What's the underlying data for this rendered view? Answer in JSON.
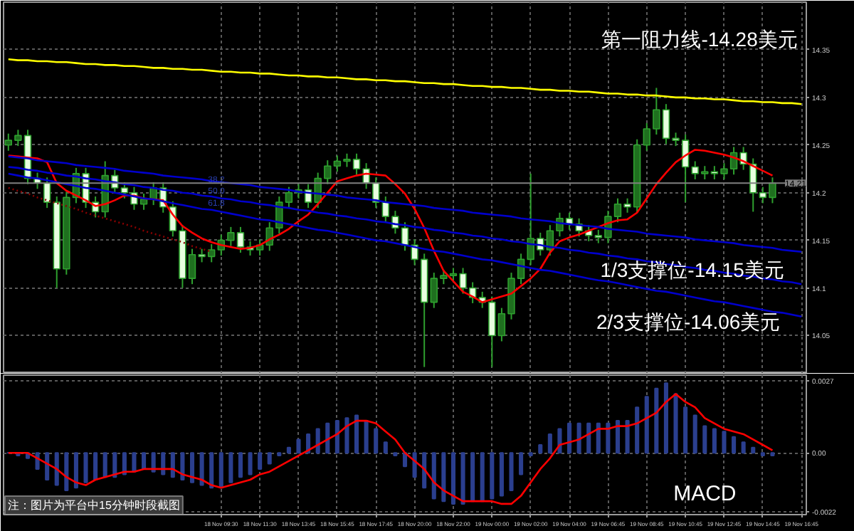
{
  "chart_data": [
    {
      "type": "candlestick",
      "categories": [
        null,
        null,
        null,
        null,
        null,
        null,
        null,
        null,
        null,
        null,
        null,
        null,
        null,
        null,
        null,
        null,
        null,
        null,
        null,
        null,
        null,
        null,
        null,
        null,
        null,
        null,
        null,
        null,
        null,
        null,
        null,
        null,
        null,
        null,
        null,
        null,
        null,
        null,
        null,
        null,
        null,
        null,
        null,
        null,
        null,
        null,
        null,
        null,
        null,
        null,
        null,
        null,
        null,
        null,
        null,
        null,
        null,
        null,
        null,
        null,
        null,
        null,
        null,
        null,
        null,
        null,
        null,
        null,
        null,
        null,
        null,
        null,
        null,
        null,
        null,
        null,
        null,
        null,
        null,
        null,
        null,
        null,
        null
      ],
      "ohlc": [
        [
          14.25,
          14.262,
          14.244,
          14.255
        ],
        [
          14.255,
          14.266,
          14.249,
          14.26
        ],
        [
          14.26,
          14.266,
          14.209,
          14.215
        ],
        [
          14.215,
          14.221,
          14.204,
          14.21
        ],
        [
          14.21,
          14.216,
          14.184,
          14.19
        ],
        [
          14.19,
          14.196,
          14.1,
          14.12
        ],
        [
          14.12,
          14.201,
          14.114,
          14.195
        ],
        [
          14.195,
          14.226,
          14.189,
          14.22
        ],
        [
          14.22,
          14.226,
          14.184,
          14.19
        ],
        [
          14.19,
          14.196,
          14.174,
          14.18
        ],
        [
          14.18,
          14.233,
          14.174,
          14.218
        ],
        [
          14.218,
          14.224,
          14.199,
          14.205
        ],
        [
          14.205,
          14.211,
          14.194,
          14.2
        ],
        [
          14.2,
          14.206,
          14.182,
          14.188
        ],
        [
          14.188,
          14.199,
          14.182,
          14.193
        ],
        [
          14.193,
          14.211,
          14.187,
          14.205
        ],
        [
          14.205,
          14.211,
          14.179,
          14.185
        ],
        [
          14.185,
          14.191,
          14.154,
          14.16
        ],
        [
          14.16,
          14.166,
          14.1,
          14.11
        ],
        [
          14.11,
          14.141,
          14.104,
          14.135
        ],
        [
          14.135,
          14.141,
          14.127,
          14.133
        ],
        [
          14.133,
          14.146,
          14.127,
          14.14
        ],
        [
          14.14,
          14.156,
          14.134,
          14.15
        ],
        [
          14.15,
          14.164,
          14.144,
          14.158
        ],
        [
          14.158,
          14.164,
          14.137,
          14.143
        ],
        [
          14.143,
          14.149,
          14.134,
          14.14
        ],
        [
          14.14,
          14.151,
          14.134,
          14.145
        ],
        [
          14.145,
          14.169,
          14.139,
          14.163
        ],
        [
          14.163,
          14.196,
          14.157,
          14.19
        ],
        [
          14.19,
          14.206,
          14.184,
          14.2
        ],
        [
          14.2,
          14.209,
          14.194,
          14.203
        ],
        [
          14.203,
          14.209,
          14.184,
          14.19
        ],
        [
          14.19,
          14.221,
          14.184,
          14.215
        ],
        [
          14.215,
          14.234,
          14.209,
          14.228
        ],
        [
          14.228,
          14.239,
          14.222,
          14.233
        ],
        [
          14.233,
          14.241,
          14.227,
          14.235
        ],
        [
          14.235,
          14.241,
          14.219,
          14.225
        ],
        [
          14.225,
          14.231,
          14.204,
          14.21
        ],
        [
          14.21,
          14.216,
          14.184,
          14.19
        ],
        [
          14.19,
          14.196,
          14.169,
          14.175
        ],
        [
          14.175,
          14.181,
          14.157,
          14.163
        ],
        [
          14.163,
          14.169,
          14.139,
          14.145
        ],
        [
          14.145,
          14.151,
          14.124,
          14.13
        ],
        [
          14.13,
          14.136,
          14.017,
          14.085
        ],
        [
          14.085,
          14.116,
          14.079,
          14.11
        ],
        [
          14.11,
          14.119,
          14.104,
          14.113
        ],
        [
          14.113,
          14.121,
          14.107,
          14.115
        ],
        [
          14.115,
          14.121,
          14.094,
          14.1
        ],
        [
          14.1,
          14.106,
          14.084,
          14.09
        ],
        [
          14.09,
          14.096,
          14.079,
          14.085
        ],
        [
          14.085,
          14.091,
          14.017,
          14.05
        ],
        [
          14.05,
          14.079,
          14.044,
          14.073
        ],
        [
          14.073,
          14.116,
          14.067,
          14.11
        ],
        [
          14.11,
          14.136,
          14.104,
          14.13
        ],
        [
          14.13,
          14.22,
          14.124,
          14.152
        ],
        [
          14.152,
          14.158,
          14.134,
          14.14
        ],
        [
          14.14,
          14.166,
          14.134,
          14.16
        ],
        [
          14.16,
          14.179,
          14.154,
          14.173
        ],
        [
          14.173,
          14.179,
          14.161,
          14.167
        ],
        [
          14.167,
          14.173,
          14.154,
          14.16
        ],
        [
          14.16,
          14.166,
          14.149,
          14.155
        ],
        [
          14.155,
          14.161,
          14.147,
          14.153
        ],
        [
          14.153,
          14.181,
          14.147,
          14.175
        ],
        [
          14.175,
          14.194,
          14.169,
          14.188
        ],
        [
          14.188,
          14.194,
          14.179,
          14.185
        ],
        [
          14.185,
          14.256,
          14.179,
          14.25
        ],
        [
          14.25,
          14.273,
          14.244,
          14.267
        ],
        [
          14.267,
          14.31,
          14.261,
          14.287
        ],
        [
          14.287,
          14.293,
          14.251,
          14.257
        ],
        [
          14.257,
          14.263,
          14.249,
          14.255
        ],
        [
          14.255,
          14.261,
          14.19,
          14.227
        ],
        [
          14.227,
          14.233,
          14.214,
          14.22
        ],
        [
          14.22,
          14.228,
          14.214,
          14.222
        ],
        [
          14.222,
          14.228,
          14.214,
          14.22
        ],
        [
          14.22,
          14.231,
          14.214,
          14.225
        ],
        [
          14.225,
          14.248,
          14.219,
          14.242
        ],
        [
          14.242,
          14.248,
          14.224,
          14.23
        ],
        [
          14.23,
          14.236,
          14.18,
          14.2
        ],
        [
          14.2,
          14.206,
          14.189,
          14.195
        ],
        [
          14.195,
          14.216,
          14.189,
          14.21
        ],
        null,
        null,
        null
      ],
      "colors": [
        "#1f6f1f",
        "#1f6f1f",
        "#e8ffe0",
        "#e8ffe0",
        "#e8ffe0",
        "#e8ffe0",
        "#1f6f1f",
        "#1f6f1f",
        "#e8ffe0",
        "#e8ffe0",
        "#1f6f1f",
        "#e8ffe0",
        "#e8ffe0",
        "#e8ffe0",
        "#1f6f1f",
        "#1f6f1f",
        "#e8ffe0",
        "#e8ffe0",
        "#e8ffe0",
        "#1f6f1f",
        "#e8ffe0",
        "#1f6f1f",
        "#1f6f1f",
        "#1f6f1f",
        "#e8ffe0",
        "#e8ffe0",
        "#1f6f1f",
        "#1f6f1f",
        "#1f6f1f",
        "#1f6f1f",
        "#1f6f1f",
        "#e8ffe0",
        "#1f6f1f",
        "#1f6f1f",
        "#1f6f1f",
        "#1f6f1f",
        "#e8ffe0",
        "#e8ffe0",
        "#e8ffe0",
        "#e8ffe0",
        "#e8ffe0",
        "#e8ffe0",
        "#e8ffe0",
        "#e8ffe0",
        "#1f6f1f",
        "#1f6f1f",
        "#1f6f1f",
        "#e8ffe0",
        "#e8ffe0",
        "#e8ffe0",
        "#e8ffe0",
        "#1f6f1f",
        "#1f6f1f",
        "#1f6f1f",
        "#1f6f1f",
        "#e8ffe0",
        "#1f6f1f",
        "#1f6f1f",
        "#e8ffe0",
        "#e8ffe0",
        "#e8ffe0",
        "#e8ffe0",
        "#1f6f1f",
        "#1f6f1f",
        "#e8ffe0",
        "#1f6f1f",
        "#1f6f1f",
        "#1f6f1f",
        "#e8ffe0",
        "#e8ffe0",
        "#e8ffe0",
        "#e8ffe0",
        "#1f6f1f",
        "#e8ffe0",
        "#1f6f1f",
        "#1f6f1f",
        "#e8ffe0",
        "#e8ffe0",
        "#e8ffe0",
        "#1f6f1f",
        null,
        null,
        null
      ],
      "series": [
        {
          "type": "line",
          "color": "#ff0000",
          "values": [
            14.239,
            14.238,
            14.237,
            14.236,
            14.232,
            14.21,
            14.202,
            14.197,
            14.192,
            14.186,
            14.188,
            14.192,
            14.197,
            14.197,
            14.194,
            14.193,
            14.192,
            14.177,
            14.165,
            14.158,
            14.152,
            14.148,
            14.145,
            14.143,
            14.141,
            14.142,
            14.145,
            14.151,
            14.156,
            14.162,
            14.17,
            14.177,
            14.188,
            14.2,
            14.212,
            14.215,
            14.218,
            14.22,
            14.219,
            14.218,
            14.209,
            14.199,
            14.183,
            14.163,
            14.139,
            14.118,
            14.107,
            14.096,
            14.091,
            14.085,
            14.088,
            14.091,
            14.094,
            14.102,
            14.11,
            14.12,
            14.137,
            14.149,
            14.153,
            14.156,
            14.16,
            14.164,
            14.168,
            14.171,
            14.172,
            14.179,
            14.194,
            14.209,
            14.221,
            14.232,
            14.239,
            14.245,
            14.244,
            14.242,
            14.24,
            14.237,
            14.233,
            14.228,
            14.223,
            14.218,
            null,
            null,
            null
          ]
        },
        {
          "type": "line",
          "color": "#ffff00",
          "values": [
            14.34,
            14.339,
            14.339,
            14.338,
            14.338,
            14.337,
            14.337,
            14.336,
            14.335,
            14.335,
            14.334,
            14.334,
            14.333,
            14.333,
            14.332,
            14.331,
            14.331,
            14.33,
            14.33,
            14.329,
            14.329,
            14.328,
            14.327,
            14.327,
            14.326,
            14.326,
            14.325,
            14.325,
            14.324,
            14.323,
            14.323,
            14.322,
            14.322,
            14.321,
            14.321,
            14.32,
            14.319,
            14.319,
            14.318,
            14.318,
            14.317,
            14.317,
            14.316,
            14.315,
            14.315,
            14.314,
            14.314,
            14.313,
            14.312,
            14.312,
            14.311,
            14.311,
            14.31,
            14.31,
            14.309,
            14.308,
            14.308,
            14.307,
            14.307,
            14.306,
            14.306,
            14.305,
            14.304,
            14.304,
            14.303,
            14.303,
            14.302,
            14.302,
            14.301,
            14.3,
            14.3,
            14.299,
            14.299,
            14.298,
            14.298,
            14.297,
            14.296,
            14.296,
            14.295,
            14.295,
            14.294,
            14.294,
            14.293
          ]
        },
        {
          "type": "line",
          "color": "#0000cc",
          "values": [
            14.238,
            14.237,
            14.236,
            14.234,
            14.233,
            14.232,
            14.231,
            14.229,
            14.228,
            14.227,
            14.226,
            14.225,
            14.223,
            14.222,
            14.221,
            14.22,
            14.218,
            14.217,
            14.216,
            14.215,
            14.214,
            14.212,
            14.211,
            14.21,
            14.209,
            14.208,
            14.206,
            14.205,
            14.204,
            14.203,
            14.201,
            14.2,
            14.199,
            14.198,
            14.197,
            14.195,
            14.194,
            14.193,
            14.192,
            14.19,
            14.189,
            14.188,
            14.187,
            14.186,
            14.184,
            14.183,
            14.182,
            14.181,
            14.179,
            14.178,
            14.177,
            14.176,
            14.175,
            14.173,
            14.172,
            14.171,
            14.17,
            14.168,
            14.167,
            14.166,
            14.165,
            14.164,
            14.162,
            14.161,
            14.16,
            14.159,
            14.157,
            14.156,
            14.155,
            14.154,
            14.153,
            14.151,
            14.15,
            14.149,
            14.148,
            14.147,
            14.145,
            14.144,
            14.143,
            14.142,
            14.14,
            14.139,
            14.138
          ]
        },
        {
          "type": "line",
          "color": "#0000cc",
          "values": [
            14.227,
            14.226,
            14.224,
            14.223,
            14.221,
            14.22,
            14.218,
            14.217,
            14.215,
            14.214,
            14.212,
            14.211,
            14.209,
            14.208,
            14.206,
            14.205,
            14.203,
            14.202,
            14.2,
            14.199,
            14.197,
            14.196,
            14.194,
            14.193,
            14.191,
            14.19,
            14.188,
            14.187,
            14.185,
            14.184,
            14.182,
            14.181,
            14.179,
            14.178,
            14.176,
            14.175,
            14.173,
            14.172,
            14.17,
            14.169,
            14.167,
            14.166,
            14.164,
            14.163,
            14.161,
            14.16,
            14.158,
            14.157,
            14.155,
            14.154,
            14.152,
            14.151,
            14.149,
            14.148,
            14.146,
            14.145,
            14.143,
            14.142,
            14.14,
            14.139,
            14.137,
            14.136,
            14.134,
            14.133,
            14.131,
            14.13,
            14.128,
            14.127,
            14.125,
            14.124,
            14.122,
            14.121,
            14.119,
            14.118,
            14.116,
            14.115,
            14.113,
            14.112,
            14.11,
            14.109,
            14.107,
            14.106,
            14.104
          ]
        },
        {
          "type": "line",
          "color": "#0000cc",
          "values": [
            14.22,
            14.218,
            14.216,
            14.215,
            14.213,
            14.211,
            14.209,
            14.207,
            14.205,
            14.204,
            14.202,
            14.2,
            14.198,
            14.196,
            14.194,
            14.193,
            14.191,
            14.189,
            14.187,
            14.185,
            14.183,
            14.182,
            14.18,
            14.178,
            14.176,
            14.174,
            14.172,
            14.171,
            14.169,
            14.167,
            14.165,
            14.163,
            14.161,
            14.16,
            14.158,
            14.156,
            14.154,
            14.152,
            14.15,
            14.149,
            14.147,
            14.145,
            14.143,
            14.141,
            14.139,
            14.138,
            14.136,
            14.134,
            14.132,
            14.13,
            14.129,
            14.127,
            14.125,
            14.123,
            14.121,
            14.119,
            14.118,
            14.116,
            14.114,
            14.112,
            14.11,
            14.108,
            14.107,
            14.105,
            14.103,
            14.101,
            14.099,
            14.097,
            14.096,
            14.094,
            14.092,
            14.09,
            14.088,
            14.086,
            14.085,
            14.083,
            14.081,
            14.079,
            14.077,
            14.075,
            14.074,
            14.072,
            14.07
          ]
        },
        {
          "type": "line",
          "color": "#8b0000",
          "line_style": "dotted",
          "values": [
            14.205,
            14.202,
            14.199,
            14.195,
            14.192,
            14.189,
            14.186,
            14.183,
            14.179,
            14.176,
            14.173,
            14.17,
            14.167,
            14.164,
            14.16,
            14.157,
            14.154,
            14.151,
            14.148,
            14.144,
            14.141,
            14.138,
            null,
            null,
            null,
            null,
            null,
            null,
            null,
            null,
            null,
            null,
            null,
            null,
            null,
            null,
            null,
            null,
            null,
            null,
            null,
            null,
            null,
            null,
            null,
            null,
            null,
            null,
            null,
            null,
            null,
            null,
            null,
            null,
            null,
            null,
            null,
            null,
            null,
            null,
            null,
            null,
            null,
            null,
            null,
            null,
            null,
            null,
            null,
            null,
            null,
            null,
            null,
            null,
            null,
            null,
            null,
            null,
            null,
            null,
            null,
            null,
            null
          ]
        }
      ],
      "ref_lines": [
        {
          "axis": "y",
          "value": 14.21,
          "label": "14.21",
          "color": "#7f7f7f"
        }
      ],
      "annotations": [
        "第一阻力线-14.28美元",
        "1/3支撑位-14.15美元",
        "2/3支撑位-14.06美元",
        "38.2",
        "50.0",
        "61.8"
      ],
      "ylim": [
        14.01,
        14.4
      ],
      "yticks": [
        14.05,
        14.1,
        14.15,
        14.2,
        14.25,
        14.3,
        14.35
      ],
      "grid": true,
      "tick_labels": "y"
    },
    {
      "type": "bar",
      "categories": [
        null,
        null,
        null,
        null,
        null,
        null,
        null,
        null,
        null,
        null,
        null,
        null,
        null,
        null,
        null,
        null,
        null,
        null,
        null,
        null,
        null,
        null,
        "18 Nov 09:30",
        null,
        null,
        null,
        "18 Nov 11:30",
        null,
        null,
        null,
        "18 Nov 13:45",
        null,
        null,
        null,
        "18 Nov 15:45",
        null,
        null,
        null,
        "18 Nov 17:45",
        null,
        null,
        null,
        "18 Nov 20:00",
        null,
        null,
        null,
        "18 Nov 22:00",
        null,
        null,
        null,
        "19 Nov 00:00",
        null,
        null,
        null,
        "19 Nov 02:00",
        null,
        null,
        null,
        "19 Nov 04:00",
        null,
        null,
        null,
        "19 Nov 06:45",
        null,
        null,
        null,
        "19 Nov 08:45",
        null,
        null,
        null,
        "19 Nov 10:45",
        null,
        null,
        null,
        "19 Nov 12:45",
        null,
        null,
        null,
        "19 Nov 14:45",
        null,
        null,
        null,
        "19 Nov 16:45"
      ],
      "series": [
        {
          "type": "bar",
          "color": "#2b3f8f",
          "values": [
            0,
            -0.0001,
            -0.0002,
            -0.0006,
            -0.001,
            -0.0012,
            -0.0014,
            -0.0013,
            -0.0011,
            -0.001,
            -0.0009,
            -0.0009,
            -0.0008,
            -0.0007,
            -0.0006,
            -0.0007,
            -0.0008,
            -0.0009,
            -0.001,
            -0.0011,
            -0.0012,
            -0.0013,
            -0.0013,
            -0.0011,
            -0.0009,
            -0.0008,
            -0.0006,
            -0.0004,
            -0.0001,
            0.0002,
            0.0005,
            0.0007,
            0.0009,
            0.0011,
            0.0012,
            0.0013,
            0.0014,
            0.0012,
            0.0009,
            0.0004,
            -0.0001,
            -0.0005,
            -0.0009,
            -0.0013,
            -0.0017,
            -0.0018,
            -0.0019,
            -0.0019,
            -0.0018,
            -0.0018,
            -0.0017,
            -0.0016,
            -0.0014,
            -0.0008,
            -0.0001,
            0.0003,
            0.0007,
            0.0009,
            0.0011,
            0.0011,
            0.0011,
            0.0011,
            0.0011,
            0.0012,
            0.0012,
            0.0017,
            0.0021,
            0.0024,
            0.0026,
            0.0022,
            0.0017,
            0.0014,
            0.001,
            0.0009,
            0.0008,
            0.0006,
            0.0004,
            0.0002,
            -0.0001,
            -0.0001,
            null,
            null,
            null
          ]
        },
        {
          "type": "line",
          "color": "#ff0000",
          "values": [
            0,
            0,
            0,
            -0.0002,
            -0.0004,
            -0.0006,
            -0.0009,
            -0.0011,
            -0.0012,
            -0.001,
            -0.0009,
            -0.0008,
            -0.0007,
            -0.0007,
            -0.0006,
            -0.0006,
            -0.0006,
            -0.0006,
            -0.0008,
            -0.0009,
            -0.001,
            -0.0012,
            -0.0013,
            -0.0012,
            -0.0011,
            -0.001,
            -0.0008,
            -0.0007,
            -0.0005,
            -0.0003,
            -0.0001,
            0.0001,
            0.0003,
            0.0005,
            0.0007,
            0.001,
            0.0012,
            0.0012,
            0.0011,
            0.0008,
            0.0005,
            0,
            -0.0003,
            -0.0006,
            -0.0011,
            -0.0014,
            -0.0016,
            -0.0018,
            -0.0018,
            -0.0018,
            -0.0018,
            -0.0019,
            -0.0019,
            -0.0016,
            -0.0011,
            -0.0006,
            -0.0002,
            0.0003,
            0.0004,
            0.0005,
            0.0007,
            0.0009,
            0.0009,
            0.001,
            0.001,
            0.0011,
            0.0013,
            0.0015,
            0.0019,
            0.0022,
            0.0019,
            0.0017,
            0.0013,
            0.0011,
            0.0009,
            0.0008,
            0.0007,
            0.0005,
            0.0003,
            0.0001,
            null,
            null,
            null
          ]
        }
      ],
      "annotations": [
        "MACD",
        "注：图片为平台中15分钟时段截图"
      ],
      "ylim": [
        -0.0023,
        0.0029
      ],
      "yticks": [
        0.0027,
        {
          "value": 0,
          "label": "0.00"
        },
        -0.0022
      ],
      "grid": true
    }
  ]
}
